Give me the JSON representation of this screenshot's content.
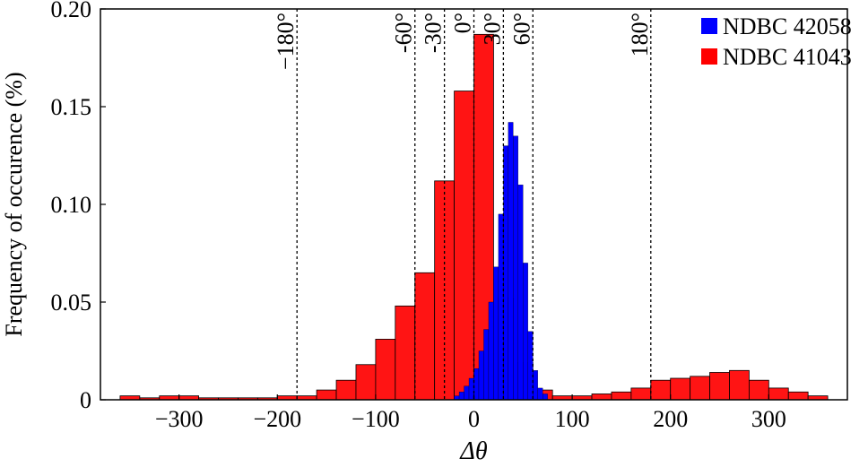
{
  "chart_data": {
    "type": "histogram",
    "xlabel": "Δθ",
    "ylabel": "Frequency of occurence (%)",
    "xlim": [
      -380,
      380
    ],
    "ylim": [
      0,
      0.2
    ],
    "x_ticks": [
      -300,
      -200,
      -100,
      0,
      100,
      200,
      300
    ],
    "x_tick_labels": [
      "−300",
      "−200",
      "−100",
      "0",
      "100",
      "200",
      "300"
    ],
    "y_ticks": [
      0,
      0.05,
      0.1,
      0.15,
      0.2
    ],
    "y_tick_labels": [
      "0",
      "0.05",
      "0.10",
      "0.15",
      "0.20"
    ],
    "grid": false,
    "legend_position": "top-right",
    "series": [
      {
        "name": "NDBC 42058",
        "color": "#0000ff",
        "bin_width": 5,
        "bins": [
          {
            "x0": -20,
            "value": 0.002
          },
          {
            "x0": -15,
            "value": 0.004
          },
          {
            "x0": -10,
            "value": 0.007
          },
          {
            "x0": -5,
            "value": 0.011
          },
          {
            "x0": 0,
            "value": 0.016
          },
          {
            "x0": 5,
            "value": 0.025
          },
          {
            "x0": 10,
            "value": 0.036
          },
          {
            "x0": 15,
            "value": 0.05
          },
          {
            "x0": 20,
            "value": 0.068
          },
          {
            "x0": 25,
            "value": 0.095
          },
          {
            "x0": 30,
            "value": 0.13
          },
          {
            "x0": 35,
            "value": 0.142
          },
          {
            "x0": 40,
            "value": 0.135
          },
          {
            "x0": 45,
            "value": 0.11
          },
          {
            "x0": 50,
            "value": 0.07
          },
          {
            "x0": 55,
            "value": 0.035
          },
          {
            "x0": 60,
            "value": 0.015
          },
          {
            "x0": 65,
            "value": 0.006
          },
          {
            "x0": 70,
            "value": 0.003
          }
        ]
      },
      {
        "name": "NDBC 41043",
        "color": "#ff0000",
        "bin_width": 20,
        "bins": [
          {
            "x0": -360,
            "value": 0.002
          },
          {
            "x0": -340,
            "value": 0.001
          },
          {
            "x0": -320,
            "value": 0.002
          },
          {
            "x0": -300,
            "value": 0.002
          },
          {
            "x0": -280,
            "value": 0.001
          },
          {
            "x0": -260,
            "value": 0.001
          },
          {
            "x0": -240,
            "value": 0.001
          },
          {
            "x0": -220,
            "value": 0.001
          },
          {
            "x0": -200,
            "value": 0.002
          },
          {
            "x0": -180,
            "value": 0.002
          },
          {
            "x0": -160,
            "value": 0.005
          },
          {
            "x0": -140,
            "value": 0.01
          },
          {
            "x0": -120,
            "value": 0.018
          },
          {
            "x0": -100,
            "value": 0.031
          },
          {
            "x0": -80,
            "value": 0.048
          },
          {
            "x0": -60,
            "value": 0.065
          },
          {
            "x0": -40,
            "value": 0.112
          },
          {
            "x0": -20,
            "value": 0.158
          },
          {
            "x0": 0,
            "value": 0.187
          },
          {
            "x0": 20,
            "value": 0.052
          },
          {
            "x0": 40,
            "value": 0.019
          },
          {
            "x0": 60,
            "value": 0.005
          },
          {
            "x0": 80,
            "value": 0.002
          },
          {
            "x0": 100,
            "value": 0.002
          },
          {
            "x0": 120,
            "value": 0.003
          },
          {
            "x0": 140,
            "value": 0.004
          },
          {
            "x0": 160,
            "value": 0.006
          },
          {
            "x0": 180,
            "value": 0.01
          },
          {
            "x0": 200,
            "value": 0.011
          },
          {
            "x0": 220,
            "value": 0.012
          },
          {
            "x0": 240,
            "value": 0.014
          },
          {
            "x0": 260,
            "value": 0.015
          },
          {
            "x0": 280,
            "value": 0.01
          },
          {
            "x0": 300,
            "value": 0.006
          },
          {
            "x0": 320,
            "value": 0.004
          },
          {
            "x0": 340,
            "value": 0.002
          }
        ]
      }
    ],
    "reference_lines": [
      {
        "x": -180,
        "label": "−180°"
      },
      {
        "x": -60,
        "label": "-60°"
      },
      {
        "x": -30,
        "label": "-30°"
      },
      {
        "x": 0,
        "label": "0°"
      },
      {
        "x": 30,
        "label": "30°"
      },
      {
        "x": 60,
        "label": "60°"
      },
      {
        "x": 180,
        "label": "180°"
      }
    ]
  }
}
